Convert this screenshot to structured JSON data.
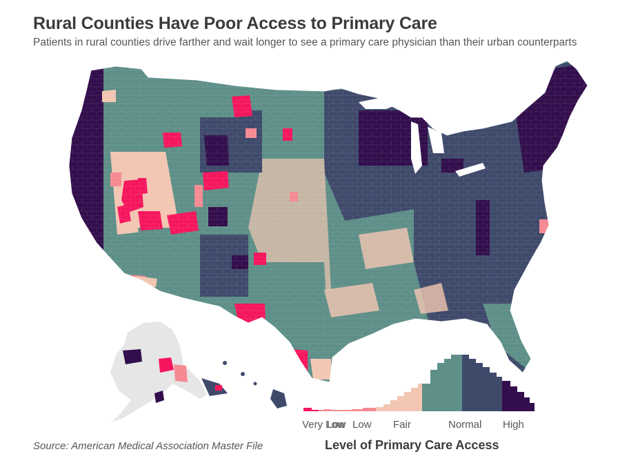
{
  "title": "Rural Counties Have Poor Access to Primary Care",
  "subtitle": "Patients in rural counties drive farther and wait longer to see a primary care physician than their urban counterparts",
  "source": "Source: American Medical Association Master File",
  "legend": {
    "title": "Level of Primary Care Access",
    "labels": [
      "Very Low",
      "Low",
      "Fair",
      "Normal",
      "High"
    ]
  },
  "colors": {
    "very_low": "#f5175e",
    "low": "#f58a92",
    "fair": "#f2c6b2",
    "normal_light": "#5e8f88",
    "normal_dark": "#3f4a6b",
    "high": "#320e4c",
    "no_data": "#e6e6e6"
  }
}
